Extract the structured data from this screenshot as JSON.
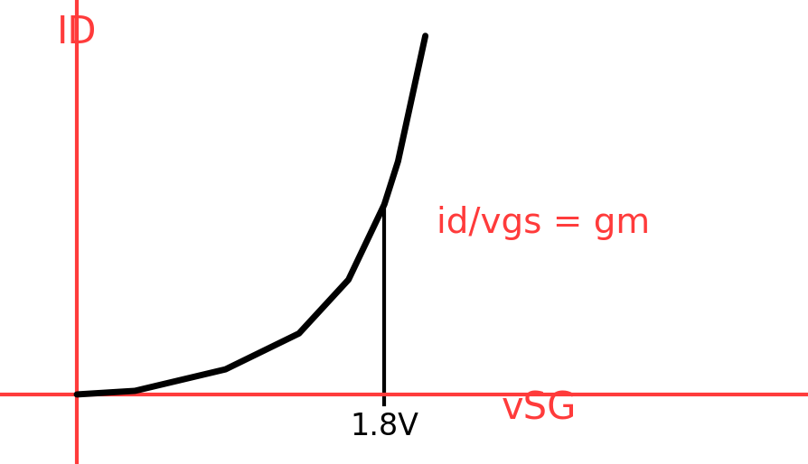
{
  "chart_data": {
    "type": "line",
    "x_label": "vSG",
    "y_label": "ID",
    "annotation": "id/vgs = gm",
    "x": [
      0.0,
      0.34,
      0.87,
      1.3,
      1.59,
      1.72,
      1.8,
      1.88,
      2.04
    ],
    "values": [
      0.0,
      0.1,
      0.7,
      1.7,
      3.2,
      4.5,
      5.3,
      6.5,
      10.0
    ],
    "color": "#000000",
    "axis_color": "#ff3b3b",
    "xlim": [
      -0.45,
      4.28
    ],
    "ylim": [
      -1.94,
      11.0
    ],
    "xticks": [
      {
        "value": 1.8,
        "label": "1.8V"
      }
    ],
    "yticks": [],
    "tick_labels": "x",
    "grid": false
  }
}
